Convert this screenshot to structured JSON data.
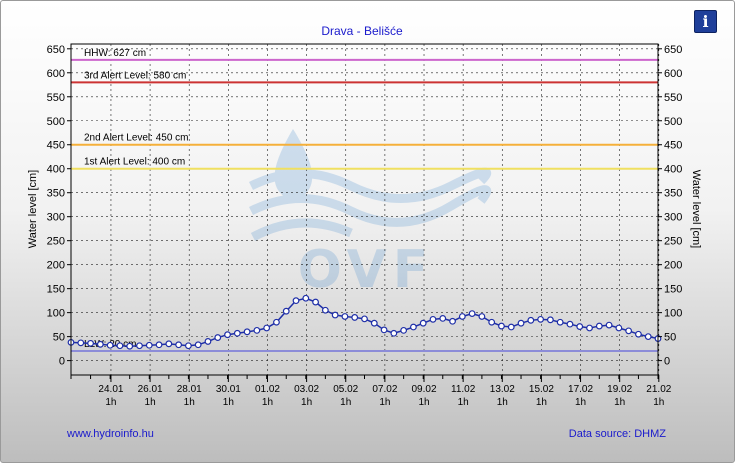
{
  "info_button": {
    "glyph": "i",
    "icon": "info-icon"
  },
  "footer": {
    "website": "www.hydroinfo.hu",
    "source": "Data source: DHMZ"
  },
  "watermark": {
    "text": "OVF"
  },
  "colors": {
    "hhw": "#cc66cc",
    "alert3": "#cc3333",
    "alert2": "#f5b03a",
    "alert1": "#f0e060",
    "llw": "#8c8cd8",
    "series": "#1f2fa8",
    "title": "#1a1acc"
  },
  "chart_data": {
    "type": "line",
    "title": "Drava - Belišće",
    "ylabel_left": "Water level [cm]",
    "ylabel_right": "Water level [cm]",
    "ylim": [
      -30,
      660
    ],
    "yticks": [
      0,
      50,
      100,
      150,
      200,
      250,
      300,
      350,
      400,
      450,
      500,
      550,
      600,
      650
    ],
    "xlim": [
      "2022-01-22T00:00",
      "2022-02-21T00:00"
    ],
    "x_ticks": [
      {
        "x": "2022-01-24T01:00",
        "date": "24.01",
        "hour": "1h"
      },
      {
        "x": "2022-01-26T01:00",
        "date": "26.01",
        "hour": "1h"
      },
      {
        "x": "2022-01-28T01:00",
        "date": "28.01",
        "hour": "1h"
      },
      {
        "x": "2022-01-30T01:00",
        "date": "30.01",
        "hour": "1h"
      },
      {
        "x": "2022-02-01T01:00",
        "date": "01.02",
        "hour": "1h"
      },
      {
        "x": "2022-02-03T01:00",
        "date": "03.02",
        "hour": "1h"
      },
      {
        "x": "2022-02-05T01:00",
        "date": "05.02",
        "hour": "1h"
      },
      {
        "x": "2022-02-07T01:00",
        "date": "07.02",
        "hour": "1h"
      },
      {
        "x": "2022-02-09T01:00",
        "date": "09.02",
        "hour": "1h"
      },
      {
        "x": "2022-02-11T01:00",
        "date": "11.02",
        "hour": "1h"
      },
      {
        "x": "2022-02-13T01:00",
        "date": "13.02",
        "hour": "1h"
      },
      {
        "x": "2022-02-15T01:00",
        "date": "15.02",
        "hour": "1h"
      },
      {
        "x": "2022-02-17T01:00",
        "date": "17.02",
        "hour": "1h"
      },
      {
        "x": "2022-02-19T01:00",
        "date": "19.02",
        "hour": "1h"
      },
      {
        "x": "2022-02-21T01:00",
        "date": "21.02",
        "hour": "1h"
      }
    ],
    "reference_lines": [
      {
        "label": "HHW: 627 cm",
        "value": 627,
        "color": "#cc66cc"
      },
      {
        "label": "3rd Alert Level: 580 cm",
        "value": 580,
        "color": "#cc3333"
      },
      {
        "label": "2nd Alert Level: 450 cm",
        "value": 450,
        "color": "#f5b03a"
      },
      {
        "label": "1st Alert Level: 400 cm",
        "value": 400,
        "color": "#f0e060"
      },
      {
        "label": "LLW: 20 cm",
        "value": 20,
        "color": "#8c8cd8"
      }
    ],
    "series": [
      {
        "x": [
          "2022-01-22T00:00",
          "2022-01-22T12:00",
          "2022-01-23T00:00",
          "2022-01-23T12:00",
          "2022-01-24T00:00",
          "2022-01-24T12:00",
          "2022-01-25T00:00",
          "2022-01-25T12:00",
          "2022-01-26T00:00",
          "2022-01-26T12:00",
          "2022-01-27T00:00",
          "2022-01-27T12:00",
          "2022-01-28T00:00",
          "2022-01-28T12:00",
          "2022-01-29T00:00",
          "2022-01-29T12:00",
          "2022-01-30T00:00",
          "2022-01-30T12:00",
          "2022-01-31T00:00",
          "2022-01-31T12:00",
          "2022-02-01T00:00",
          "2022-02-01T12:00",
          "2022-02-02T00:00",
          "2022-02-02T12:00",
          "2022-02-03T00:00",
          "2022-02-03T12:00",
          "2022-02-04T00:00",
          "2022-02-04T12:00",
          "2022-02-05T00:00",
          "2022-02-05T12:00",
          "2022-02-06T00:00",
          "2022-02-06T12:00",
          "2022-02-07T00:00",
          "2022-02-07T12:00",
          "2022-02-08T00:00",
          "2022-02-08T12:00",
          "2022-02-09T00:00",
          "2022-02-09T12:00",
          "2022-02-10T00:00",
          "2022-02-10T12:00",
          "2022-02-11T00:00",
          "2022-02-11T12:00",
          "2022-02-12T00:00",
          "2022-02-12T12:00",
          "2022-02-13T00:00",
          "2022-02-13T12:00",
          "2022-02-14T00:00",
          "2022-02-14T12:00",
          "2022-02-15T00:00",
          "2022-02-15T12:00",
          "2022-02-16T00:00",
          "2022-02-16T12:00",
          "2022-02-17T00:00",
          "2022-02-17T12:00",
          "2022-02-18T00:00",
          "2022-02-18T12:00",
          "2022-02-19T00:00",
          "2022-02-19T12:00",
          "2022-02-20T00:00",
          "2022-02-20T12:00",
          "2022-02-21T00:00"
        ],
        "values": [
          38,
          37,
          36,
          34,
          32,
          31,
          30,
          31,
          32,
          33,
          35,
          33,
          31,
          33,
          40,
          48,
          54,
          57,
          60,
          63,
          68,
          80,
          103,
          125,
          130,
          122,
          105,
          95,
          92,
          90,
          87,
          78,
          64,
          57,
          63,
          70,
          78,
          86,
          88,
          82,
          92,
          98,
          92,
          80,
          72,
          70,
          78,
          84,
          86,
          85,
          80,
          76,
          71,
          68,
          72,
          74,
          68,
          62,
          55,
          50,
          46
        ]
      }
    ]
  }
}
